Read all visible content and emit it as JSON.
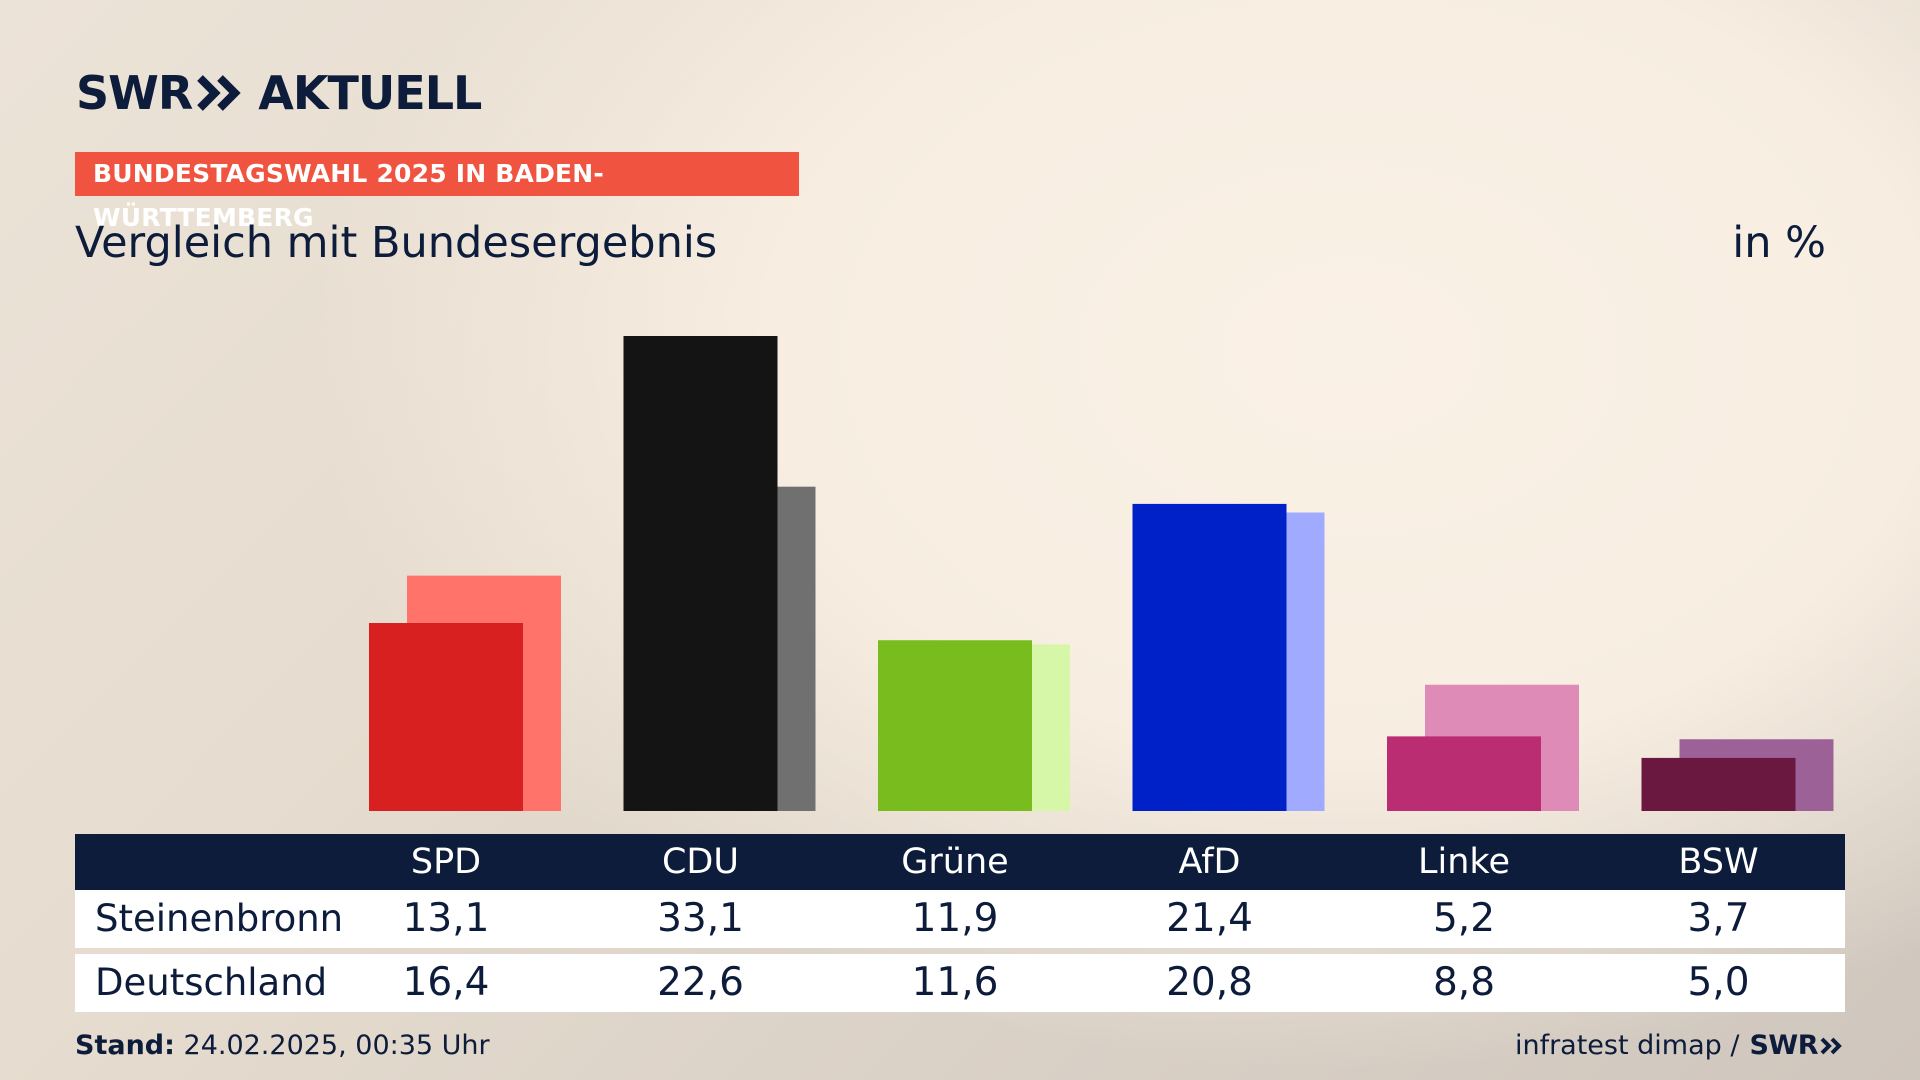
{
  "header": {
    "logo_left": "SWR",
    "logo_right": "AKTUELL",
    "kicker": "BUNDESTAGSWAHL 2025 IN BADEN-WÜRTTEMBERG",
    "title": "Vergleich mit Bundesergebnis",
    "unit": "in %"
  },
  "table": {
    "row_labels": [
      "Steinenbronn",
      "Deutschland"
    ]
  },
  "footer": {
    "stand_label": "Stand:",
    "stand_value": "24.02.2025, 00:35 Uhr",
    "source": "infratest dimap /",
    "source_brand": "SWR"
  },
  "chart_data": {
    "type": "bar",
    "title": "Vergleich mit Bundesergebnis",
    "ylabel": "in %",
    "categories": [
      "SPD",
      "CDU",
      "Grüne",
      "AfD",
      "Linke",
      "BSW"
    ],
    "series": [
      {
        "name": "Steinenbronn",
        "values": [
          13.1,
          33.1,
          11.9,
          21.4,
          5.2,
          3.7
        ],
        "colors": [
          "#d7201f",
          "#141414",
          "#79bc1e",
          "#0021c8",
          "#bb2d72",
          "#6a1840"
        ]
      },
      {
        "name": "Deutschland",
        "values": [
          16.4,
          22.6,
          11.6,
          20.8,
          8.8,
          5.0
        ],
        "colors": [
          "#ff736b",
          "#707070",
          "#d6f6a8",
          "#a0aaff",
          "#df8bb7",
          "#9c6298"
        ]
      }
    ],
    "value_labels": {
      "Steinenbronn": [
        "13,1",
        "33,1",
        "11,9",
        "21,4",
        "5,2",
        "3,7"
      ],
      "Deutschland": [
        "16,4",
        "22,6",
        "11,6",
        "20,8",
        "8,8",
        "5,0"
      ]
    },
    "ylim": [
      0,
      33.1
    ],
    "grid": false,
    "legend": "table-below"
  }
}
